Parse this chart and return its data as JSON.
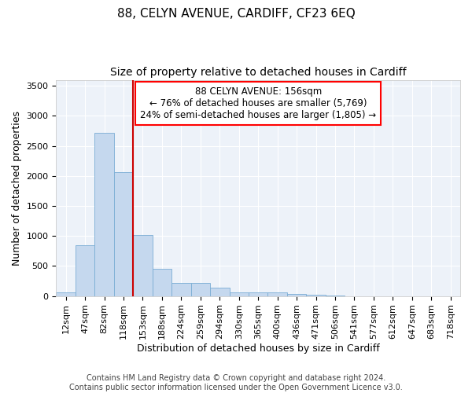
{
  "title1": "88, CELYN AVENUE, CARDIFF, CF23 6EQ",
  "title2": "Size of property relative to detached houses in Cardiff",
  "xlabel": "Distribution of detached houses by size in Cardiff",
  "ylabel": "Number of detached properties",
  "bar_color": "#c5d8ee",
  "bar_edge_color": "#7aadd4",
  "vline_color": "#cc0000",
  "vline_x_index": 4,
  "annotation_title": "88 CELYN AVENUE: 156sqm",
  "annotation_line1": "← 76% of detached houses are smaller (5,769)",
  "annotation_line2": "24% of semi-detached houses are larger (1,805) →",
  "categories": [
    "12sqm",
    "47sqm",
    "82sqm",
    "118sqm",
    "153sqm",
    "188sqm",
    "224sqm",
    "259sqm",
    "294sqm",
    "330sqm",
    "365sqm",
    "400sqm",
    "436sqm",
    "471sqm",
    "506sqm",
    "541sqm",
    "577sqm",
    "612sqm",
    "647sqm",
    "683sqm",
    "718sqm"
  ],
  "values": [
    60,
    850,
    2720,
    2060,
    1010,
    450,
    215,
    215,
    135,
    65,
    55,
    55,
    35,
    20,
    5,
    0,
    0,
    0,
    0,
    0,
    0
  ],
  "ylim": [
    0,
    3600
  ],
  "yticks": [
    0,
    500,
    1000,
    1500,
    2000,
    2500,
    3000,
    3500
  ],
  "footnote1": "Contains HM Land Registry data © Crown copyright and database right 2024.",
  "footnote2": "Contains public sector information licensed under the Open Government Licence v3.0.",
  "plot_bg_color": "#edf2f9",
  "title1_fontsize": 11,
  "title2_fontsize": 10,
  "axis_label_fontsize": 9,
  "tick_fontsize": 8,
  "footnote_fontsize": 7
}
